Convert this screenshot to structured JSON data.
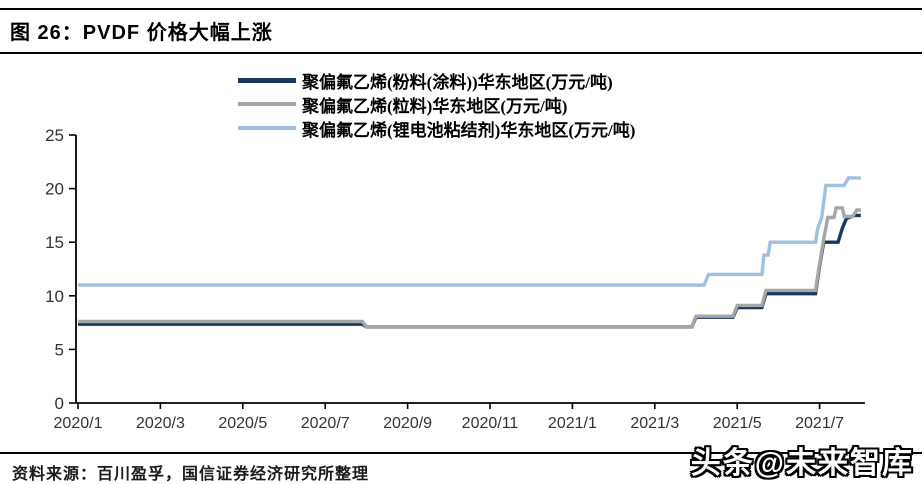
{
  "header": {
    "title": "图 26：PVDF 价格大幅上涨"
  },
  "footer": {
    "source": "资料来源：百川盈孚，国信证券经济研究所整理"
  },
  "watermark": {
    "text": "头条@未来智库"
  },
  "chart_data": {
    "type": "line",
    "line_style": "step",
    "title": "图 26：PVDF 价格大幅上涨",
    "xlabel": "",
    "ylabel": "万元/吨",
    "x_unit": "months since 2020/1",
    "x_tick_labels": [
      "2020/1",
      "2020/3",
      "2020/5",
      "2020/7",
      "2020/9",
      "2020/11",
      "2021/1",
      "2021/3",
      "2021/5",
      "2021/7"
    ],
    "x_tick_months": [
      0,
      2,
      4,
      6,
      8,
      10,
      12,
      14,
      16,
      18
    ],
    "xlim": [
      0,
      19.2
    ],
    "y_ticks": [
      0,
      5,
      10,
      15,
      20,
      25
    ],
    "ylim": [
      0,
      25
    ],
    "grid": false,
    "legend_position": "top-center",
    "axis_color": "#000000",
    "tick_label_color": "#333333",
    "series": [
      {
        "label": "聚偏氟乙烯(粉料(涂料))华东地区(万元/吨)",
        "color": "#17375E",
        "points": [
          [
            0,
            7.35
          ],
          [
            6.9,
            7.35
          ],
          [
            7.0,
            7.1
          ],
          [
            14.9,
            7.1
          ],
          [
            15.0,
            8.0
          ],
          [
            15.9,
            8.0
          ],
          [
            16.0,
            8.9
          ],
          [
            16.6,
            8.9
          ],
          [
            16.7,
            10.2
          ],
          [
            17.9,
            10.2
          ],
          [
            18.0,
            12.8
          ],
          [
            18.1,
            15.0
          ],
          [
            18.45,
            15.0
          ],
          [
            18.55,
            16.3
          ],
          [
            18.65,
            17.2
          ],
          [
            18.85,
            17.5
          ],
          [
            19.0,
            17.5
          ]
        ]
      },
      {
        "label": "聚偏氟乙烯(粒料)华东地区(万元/吨)",
        "color": "#A6A6A6",
        "points": [
          [
            0,
            7.6
          ],
          [
            6.9,
            7.6
          ],
          [
            7.0,
            7.1
          ],
          [
            14.9,
            7.1
          ],
          [
            15.0,
            8.1
          ],
          [
            15.9,
            8.1
          ],
          [
            16.0,
            9.1
          ],
          [
            16.6,
            9.1
          ],
          [
            16.7,
            10.5
          ],
          [
            17.9,
            10.5
          ],
          [
            18.0,
            13.0
          ],
          [
            18.1,
            15.3
          ],
          [
            18.2,
            17.3
          ],
          [
            18.35,
            17.3
          ],
          [
            18.4,
            18.2
          ],
          [
            18.55,
            18.2
          ],
          [
            18.6,
            17.4
          ],
          [
            18.8,
            17.4
          ],
          [
            18.9,
            18.0
          ],
          [
            19.0,
            18.0
          ]
        ]
      },
      {
        "label": "聚偏氟乙烯(锂电池粘结剂)华东地区(万元/吨)",
        "color": "#9FC0E1",
        "points": [
          [
            0,
            11.0
          ],
          [
            15.2,
            11.0
          ],
          [
            15.3,
            12.0
          ],
          [
            16.6,
            12.0
          ],
          [
            16.65,
            13.8
          ],
          [
            16.75,
            13.8
          ],
          [
            16.8,
            15.0
          ],
          [
            17.9,
            15.0
          ],
          [
            17.95,
            16.2
          ],
          [
            18.05,
            17.3
          ],
          [
            18.1,
            18.7
          ],
          [
            18.15,
            20.3
          ],
          [
            18.6,
            20.3
          ],
          [
            18.7,
            21.0
          ],
          [
            19.0,
            21.0
          ]
        ]
      }
    ]
  }
}
